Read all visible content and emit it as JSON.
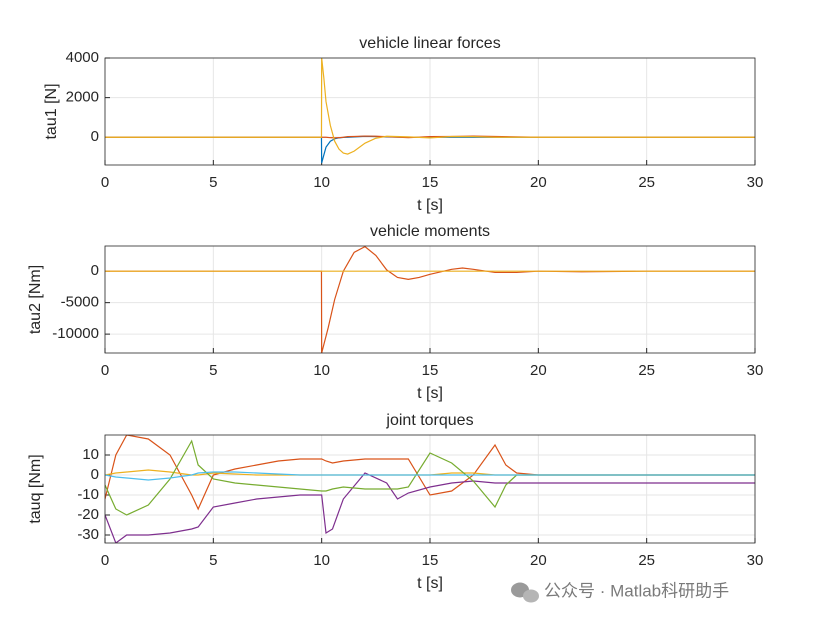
{
  "chart_data": [
    {
      "type": "line",
      "title": "vehicle linear forces",
      "xlabel": "t [s]",
      "ylabel": "tau1 [N]",
      "x": [
        0,
        9.99,
        10,
        10.1,
        10.2,
        10.4,
        10.6,
        10.8,
        11,
        11.2,
        11.5,
        12,
        12.5,
        13,
        14,
        15,
        16,
        17,
        18,
        20,
        25,
        30
      ],
      "series": [
        {
          "color": "#0072BD",
          "values": [
            0,
            0,
            -1300,
            -900,
            -500,
            -200,
            -80,
            -30,
            -10,
            0,
            20,
            50,
            40,
            20,
            0,
            0,
            0,
            0,
            0,
            0,
            0,
            0
          ]
        },
        {
          "color": "#D95319",
          "values": [
            0,
            0,
            0,
            0,
            0,
            -20,
            -30,
            -20,
            0,
            30,
            40,
            60,
            50,
            30,
            -20,
            30,
            40,
            60,
            40,
            0,
            0,
            0
          ]
        },
        {
          "color": "#EDB120",
          "values": [
            0,
            0,
            4000,
            3000,
            1800,
            600,
            -200,
            -600,
            -800,
            -850,
            -700,
            -300,
            -50,
            50,
            20,
            -30,
            40,
            30,
            0,
            0,
            0,
            0
          ]
        }
      ],
      "xlim": [
        0,
        30
      ],
      "xticks": [
        0,
        5,
        10,
        15,
        20,
        25,
        30
      ],
      "ylim": [
        -1400,
        4000
      ],
      "yticks": [
        0,
        2000,
        4000
      ],
      "grid": true
    },
    {
      "type": "line",
      "title": "vehicle moments",
      "xlabel": "t [s]",
      "ylabel": "tau2 [Nm]",
      "x": [
        0,
        9.99,
        10,
        10.3,
        10.6,
        11,
        11.5,
        12,
        12.5,
        13,
        13.5,
        14,
        14.5,
        15,
        16,
        16.5,
        17,
        18,
        19,
        20,
        22,
        25,
        30
      ],
      "series": [
        {
          "color": "#D95319",
          "values": [
            0,
            0,
            -13000,
            -9000,
            -4500,
            0,
            3000,
            3900,
            2500,
            200,
            -1000,
            -1300,
            -1000,
            -500,
            300,
            500,
            300,
            -200,
            -200,
            0,
            -100,
            0,
            0
          ]
        },
        {
          "color": "#EDB120",
          "values": [
            0,
            0,
            0,
            0,
            0,
            0,
            0,
            0,
            0,
            0,
            0,
            0,
            0,
            0,
            0,
            0,
            0,
            0,
            0,
            0,
            0,
            0,
            0
          ]
        }
      ],
      "xlim": [
        0,
        30
      ],
      "xticks": [
        0,
        5,
        10,
        15,
        20,
        25,
        30
      ],
      "ylim": [
        -13000,
        4000
      ],
      "yticks": [
        -10000,
        -5000,
        0
      ],
      "grid": true
    },
    {
      "type": "line",
      "title": "joint torques",
      "xlabel": "t [s]",
      "ylabel": "tauq [Nm]",
      "x": [
        0,
        0.5,
        1,
        2,
        3,
        4,
        4.3,
        5,
        6,
        7,
        8,
        9,
        10,
        10.2,
        10.5,
        11,
        12,
        13,
        13.5,
        14,
        15,
        16,
        17,
        18,
        18.5,
        19,
        20,
        25,
        30
      ],
      "series": [
        {
          "color": "#D95319",
          "values": [
            -12,
            10,
            20,
            18,
            10,
            -10,
            -17,
            0,
            3,
            5,
            7,
            8,
            8,
            7,
            6,
            7,
            8,
            8,
            8,
            8,
            -10,
            -8,
            0,
            15,
            5,
            1,
            0,
            0,
            0
          ]
        },
        {
          "color": "#EDB120",
          "values": [
            0,
            1,
            1.5,
            2.5,
            1.5,
            0,
            0,
            1,
            0.5,
            0,
            0,
            0,
            0,
            0,
            0,
            0,
            0,
            0,
            0,
            0,
            0,
            1,
            1,
            0,
            0,
            0,
            0,
            0,
            0
          ]
        },
        {
          "color": "#7E2F8E",
          "values": [
            -20,
            -34,
            -30,
            -30,
            -29,
            -27,
            -26,
            -16,
            -14,
            -12,
            -11,
            -10,
            -10,
            -29,
            -27,
            -12,
            1,
            -4,
            -12,
            -9,
            -6,
            -4,
            -3,
            -4,
            -4,
            -4,
            -4,
            -4,
            -4
          ]
        },
        {
          "color": "#77AC30",
          "values": [
            -5,
            -17,
            -20,
            -15,
            -2,
            17,
            5,
            -2,
            -4,
            -5,
            -6,
            -7,
            -8,
            -8,
            -7,
            -6,
            -7,
            -7,
            -7,
            -6,
            11,
            6,
            -3,
            -16,
            -5,
            0,
            0,
            0,
            0
          ]
        },
        {
          "color": "#4DBEEE",
          "values": [
            0,
            -1,
            -1.5,
            -2.5,
            -1.5,
            0,
            1,
            1.5,
            1.5,
            1,
            0.5,
            0,
            0,
            0,
            0,
            0,
            0,
            0,
            0,
            0,
            0,
            0,
            0,
            0,
            0,
            0,
            0,
            0,
            0
          ]
        }
      ],
      "xlim": [
        0,
        30
      ],
      "xticks": [
        0,
        5,
        10,
        15,
        20,
        25,
        30
      ],
      "ylim": [
        -34,
        20
      ],
      "yticks": [
        -30,
        -20,
        -10,
        0,
        10
      ],
      "grid": true
    }
  ],
  "watermark": "公众号 · Matlab科研助手"
}
